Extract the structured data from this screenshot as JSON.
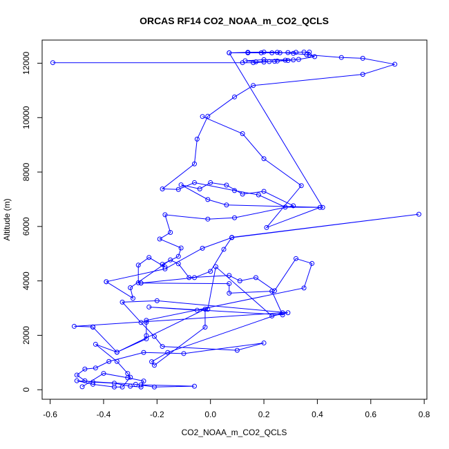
{
  "chart_data": {
    "type": "scatter",
    "title": "ORCAS RF14 CO2_NOAA_m_CO2_QCLS",
    "xlabel": "CO2_NOAA_m_CO2_QCLS",
    "ylabel": "Altitude (m)",
    "xlim": [
      -0.63,
      0.81
    ],
    "ylim": [
      -350,
      12850
    ],
    "xticks": [
      -0.6,
      -0.4,
      -0.2,
      0.0,
      0.2,
      0.4,
      0.6,
      0.8
    ],
    "yticks": [
      0,
      2000,
      4000,
      6000,
      8000,
      10000,
      12000
    ],
    "xtick_labels": [
      "-0.6",
      "-0.4",
      "-0.2",
      "0.0",
      "0.2",
      "0.4",
      "0.6",
      "0.8"
    ],
    "ytick_labels": [
      "0",
      "2000",
      "4000",
      "6000",
      "8000",
      "10000",
      "12000"
    ],
    "grid": false,
    "legend": "none",
    "color": "#0000ff",
    "marker": "open-circle",
    "connected": true,
    "series": [
      {
        "points": [
          [
            -0.59,
            12020
          ],
          [
            0.12,
            12020
          ],
          [
            0.16,
            12020
          ],
          [
            0.2,
            12040
          ],
          [
            0.22,
            12060
          ],
          [
            0.25,
            12080
          ],
          [
            0.28,
            12110
          ],
          [
            0.31,
            12120
          ],
          [
            0.2,
            12130
          ],
          [
            0.13,
            12090
          ],
          [
            0.17,
            12050
          ],
          [
            0.24,
            12070
          ],
          [
            0.29,
            12100
          ],
          [
            0.33,
            12140
          ],
          [
            0.39,
            12240
          ],
          [
            0.37,
            12300
          ],
          [
            0.31,
            12360
          ],
          [
            0.25,
            12400
          ],
          [
            0.2,
            12410
          ],
          [
            0.14,
            12400
          ],
          [
            0.07,
            12380
          ],
          [
            0.14,
            12380
          ],
          [
            0.19,
            12380
          ],
          [
            0.23,
            12380
          ],
          [
            0.26,
            12380
          ],
          [
            0.29,
            12390
          ],
          [
            0.32,
            12400
          ],
          [
            0.35,
            12410
          ],
          [
            0.37,
            12410
          ],
          [
            0.36,
            12310
          ],
          [
            0.49,
            12210
          ],
          [
            0.57,
            12180
          ],
          [
            0.69,
            11960
          ],
          [
            0.57,
            11590
          ],
          [
            0.16,
            11180
          ],
          [
            0.09,
            10760
          ],
          [
            -0.01,
            10050
          ],
          [
            -0.05,
            9210
          ],
          [
            -0.06,
            8300
          ],
          [
            -0.18,
            7380
          ],
          [
            -0.12,
            7360
          ],
          [
            -0.06,
            7610
          ],
          [
            0.09,
            7320
          ],
          [
            0.18,
            7160
          ],
          [
            0.28,
            6710
          ],
          [
            0.41,
            6700
          ],
          [
            0.21,
            5960
          ],
          [
            0.34,
            7500
          ],
          [
            0.2,
            8490
          ],
          [
            0.12,
            9410
          ],
          [
            -0.03,
            10040
          ]
        ]
      },
      {
        "points": [
          [
            0.07,
            12380
          ],
          [
            0.42,
            6700
          ],
          [
            0.06,
            6790
          ],
          [
            -0.01,
            6990
          ],
          [
            -0.11,
            7530
          ],
          [
            -0.04,
            7380
          ],
          [
            0.0,
            7610
          ],
          [
            0.06,
            7520
          ],
          [
            0.12,
            7190
          ],
          [
            0.2,
            7290
          ],
          [
            0.31,
            6760
          ],
          [
            0.09,
            6320
          ],
          [
            -0.01,
            6270
          ],
          [
            -0.17,
            6430
          ],
          [
            -0.15,
            5780
          ],
          [
            -0.19,
            5540
          ],
          [
            -0.11,
            5210
          ],
          [
            -0.12,
            4900
          ],
          [
            -0.18,
            4610
          ],
          [
            -0.17,
            4510
          ],
          [
            -0.23,
            4860
          ],
          [
            -0.27,
            4580
          ],
          [
            -0.27,
            3930
          ],
          [
            -0.26,
            3920
          ],
          [
            -0.06,
            4120
          ],
          [
            0.0,
            4350
          ],
          [
            0.05,
            5160
          ],
          [
            0.08,
            5600
          ],
          [
            0.78,
            6450
          ],
          [
            0.08,
            5590
          ],
          [
            -0.03,
            5200
          ],
          [
            -0.17,
            4440
          ],
          [
            -0.39,
            3970
          ]
        ]
      },
      {
        "points": [
          [
            -0.26,
            3920
          ],
          [
            0.07,
            3900
          ],
          [
            0.07,
            3550
          ],
          [
            0.23,
            3620
          ],
          [
            0.27,
            2750
          ],
          [
            -0.23,
            3040
          ],
          [
            -0.05,
            2920
          ],
          [
            -0.01,
            2960
          ],
          [
            0.02,
            4520
          ],
          [
            0.23,
            2710
          ],
          [
            0.29,
            2830
          ],
          [
            -0.2,
            3270
          ],
          [
            -0.33,
            3220
          ],
          [
            -0.26,
            2470
          ],
          [
            -0.21,
            1960
          ],
          [
            -0.18,
            1590
          ],
          [
            0.1,
            1450
          ],
          [
            0.2,
            1720
          ],
          [
            -0.1,
            1330
          ],
          [
            -0.25,
            1370
          ],
          [
            -0.38,
            1040
          ],
          [
            -0.43,
            800
          ],
          [
            -0.47,
            760
          ],
          [
            -0.5,
            540
          ],
          [
            -0.47,
            330
          ],
          [
            -0.44,
            280
          ],
          [
            -0.36,
            240
          ],
          [
            -0.3,
            130
          ],
          [
            -0.26,
            100
          ],
          [
            -0.25,
            320
          ],
          [
            -0.31,
            440
          ],
          [
            -0.4,
            600
          ],
          [
            -0.48,
            110
          ]
        ]
      },
      {
        "points": [
          [
            -0.39,
            3970
          ],
          [
            -0.29,
            3360
          ],
          [
            -0.3,
            3750
          ],
          [
            -0.15,
            4770
          ],
          [
            -0.12,
            4630
          ],
          [
            -0.08,
            4120
          ],
          [
            0.07,
            4200
          ],
          [
            0.11,
            4000
          ],
          [
            0.17,
            4120
          ],
          [
            0.24,
            3640
          ],
          [
            0.32,
            4820
          ],
          [
            0.38,
            4640
          ],
          [
            0.35,
            3740
          ],
          [
            -0.24,
            2550
          ],
          [
            -0.24,
            2480
          ],
          [
            -0.24,
            1990
          ],
          [
            -0.24,
            1870
          ],
          [
            -0.35,
            1380
          ],
          [
            -0.44,
            2300
          ],
          [
            -0.44,
            2310
          ],
          [
            -0.51,
            2330
          ],
          [
            0.27,
            2830
          ],
          [
            -0.16,
            1370
          ],
          [
            -0.22,
            1030
          ],
          [
            -0.21,
            900
          ],
          [
            -0.02,
            2300
          ],
          [
            -0.02,
            2960
          ],
          [
            -0.35,
            1380
          ],
          [
            -0.43,
            1670
          ],
          [
            -0.35,
            1040
          ],
          [
            -0.31,
            600
          ],
          [
            -0.3,
            460
          ],
          [
            -0.33,
            100
          ],
          [
            -0.36,
            100
          ],
          [
            -0.44,
            200
          ],
          [
            -0.5,
            330
          ],
          [
            -0.28,
            200
          ],
          [
            -0.21,
            100
          ],
          [
            -0.06,
            130
          ],
          [
            -0.26,
            180
          ]
        ]
      }
    ]
  }
}
